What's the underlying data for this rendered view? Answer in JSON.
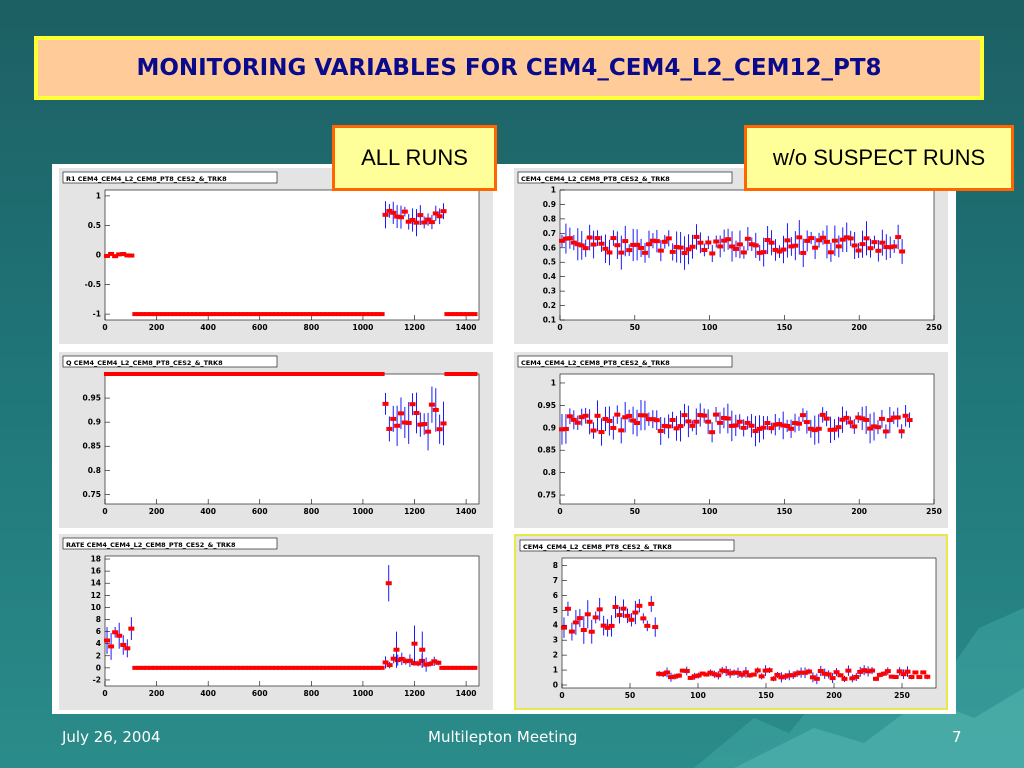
{
  "slide": {
    "title": "MONITORING VARIABLES FOR CEM4_CEM4_L2_CEM12_PT8",
    "label_all": "ALL RUNS",
    "label_wo": "w/o SUSPECT RUNS",
    "footer_date": "July 26, 2004",
    "footer_title": "Multilepton Meeting",
    "footer_page": "7"
  },
  "colors": {
    "marker": "#ff0000",
    "errorbar": "#0000ff",
    "title": "#0a0a8c"
  },
  "chart_data": [
    {
      "type": "scatter",
      "title": "R1 CEM4_CEM4_L2_CEM8_PT8_CES2_&_TRK8",
      "xlim": [
        0,
        1450
      ],
      "ylim": [
        -1.1,
        1.1
      ],
      "xticks": [
        "0",
        "200",
        "400",
        "600",
        "800",
        "1000",
        "1200",
        "1400"
      ],
      "yticks": [
        "1",
        "0.5",
        "0",
        "-0.5",
        "-1"
      ],
      "regions": [
        {
          "x": [
            0,
            110
          ],
          "yc": 0,
          "spread": 0.02,
          "err": 0.03
        },
        {
          "x": [
            110,
            1080
          ],
          "yc": -1,
          "spread": 0,
          "err": 0
        },
        {
          "x": [
            1080,
            1320
          ],
          "yc": 0.65,
          "spread": 0.12,
          "err": 0.2
        },
        {
          "x": [
            1320,
            1440
          ],
          "yc": -1,
          "spread": 0,
          "err": 0
        }
      ]
    },
    {
      "type": "scatter",
      "title": "CEM4_CEM4_L2_CEM8_PT8_CES2_&_TRK8",
      "xlim": [
        0,
        250
      ],
      "ylim": [
        0.1,
        1.0
      ],
      "xticks": [
        "0",
        "50",
        "100",
        "150",
        "200",
        "250"
      ],
      "yticks": [
        "1",
        "0.9",
        "0.8",
        "0.7",
        "0.6",
        "0.5",
        "0.4",
        "0.3",
        "0.2",
        "0.1"
      ],
      "regions": [
        {
          "x": [
            0,
            230
          ],
          "yc": 0.62,
          "spread": 0.06,
          "err": 0.1
        }
      ]
    },
    {
      "type": "scatter",
      "title": "Q CEM4_CEM4_L2_CEM8_PT8_CES2_&_TRK8",
      "xlim": [
        0,
        1450
      ],
      "ylim": [
        0.73,
        1.0
      ],
      "xticks": [
        "0",
        "200",
        "400",
        "600",
        "800",
        "1000",
        "1200",
        "1400"
      ],
      "yticks": [
        "0.95",
        "0.9",
        "0.85",
        "0.8",
        "0.75"
      ],
      "regions": [
        {
          "x": [
            0,
            1080
          ],
          "yc": 1.0,
          "spread": 0,
          "err": 0
        },
        {
          "x": [
            1080,
            1320
          ],
          "yc": 0.91,
          "spread": 0.03,
          "err": 0.04
        },
        {
          "x": [
            1320,
            1440
          ],
          "yc": 1.0,
          "spread": 0,
          "err": 0
        }
      ]
    },
    {
      "type": "scatter",
      "title": "CEM4_CEM4_L2_CEM8_PT8_CES2_&_TRK8",
      "xlim": [
        0,
        250
      ],
      "ylim": [
        0.73,
        1.02
      ],
      "xticks": [
        "0",
        "50",
        "100",
        "150",
        "200",
        "250"
      ],
      "yticks": [
        "1",
        "0.95",
        "0.9",
        "0.85",
        "0.8",
        "0.75"
      ],
      "regions": [
        {
          "x": [
            0,
            235
          ],
          "yc": 0.91,
          "spread": 0.02,
          "err": 0.03
        }
      ]
    },
    {
      "type": "scatter",
      "title": "RATE CEM4_CEM4_L2_CEM8_PT8_CES2_&_TRK8",
      "xlim": [
        0,
        1450
      ],
      "ylim": [
        -3,
        18.5
      ],
      "xticks": [
        "0",
        "200",
        "400",
        "600",
        "800",
        "1000",
        "1200",
        "1400"
      ],
      "yticks": [
        "18",
        "16",
        "14",
        "12",
        "10",
        "8",
        "6",
        "4",
        "2",
        "0",
        "-2"
      ],
      "regions": [
        {
          "x": [
            0,
            110
          ],
          "yc": 5,
          "spread": 1.8,
          "err": 2
        },
        {
          "x": [
            110,
            1080
          ],
          "yc": 0,
          "spread": 0,
          "err": 0
        },
        {
          "x": [
            1080,
            1300
          ],
          "yc": 1,
          "spread": 0.7,
          "err": 1
        },
        {
          "x": [
            1300,
            1440
          ],
          "yc": 0,
          "spread": 0,
          "err": 0
        }
      ],
      "extra": [
        [
          1100,
          14
        ],
        [
          1200,
          4
        ],
        [
          1230,
          3
        ],
        [
          1130,
          3
        ]
      ]
    },
    {
      "type": "scatter",
      "title": "CEM4_CEM4_L2_CEM8_PT8_CES2_&_TRK8",
      "xlim": [
        0,
        275
      ],
      "ylim": [
        -0.2,
        8.5
      ],
      "xticks": [
        "0",
        "50",
        "100",
        "150",
        "200",
        "250"
      ],
      "yticks": [
        "8",
        "7",
        "6",
        "5",
        "4",
        "3",
        "2",
        "1",
        "0"
      ],
      "regions": [
        {
          "x": [
            0,
            70
          ],
          "yc": 4.5,
          "spread": 1.0,
          "err": 0.8
        },
        {
          "x": [
            70,
            270
          ],
          "yc": 0.7,
          "spread": 0.3,
          "err": 0.3
        }
      ]
    }
  ]
}
